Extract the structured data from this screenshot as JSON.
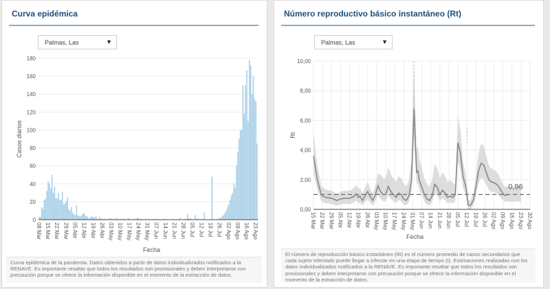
{
  "left_panel": {
    "title": "Curva epidémica",
    "dropdown": {
      "selected": "Palmas, Las",
      "arrow_icon": "▼"
    },
    "caption": "Curva epidémica de la pandemia. Datos obtenidos a partir de datos individualizados notificados a la RENAVE. Es importante resaltar que todos los resultados son provisionales y deben interpretarse con precaución porque se ofrece la información disponible en el momento de la extracción de datos."
  },
  "right_panel": {
    "title": "Número reproductivo básico instantáneo (Rt)",
    "dropdown": {
      "selected": "Palmas, Las",
      "arrow_icon": "▼"
    },
    "caption": "El número de reproducción básico instantáneo (Rt) es el número promedio de casos secundarios que cada sujeto infectado puede llegar a infectar en una etapa de tiempo (t). Estimaciones realizadas con los datos individualizados notificados a la RENAVE. Es importante resaltar que todos los resultados son provisionales y deben interpretarse con precaución porque se ofrece la información disponible en el momento de la extracción de datos."
  },
  "chart_data": [
    {
      "type": "bar",
      "title": "Curva epidémica",
      "xlabel": "Fecha",
      "ylabel": "Casos diarios",
      "ylim": [
        0,
        180
      ],
      "yticks": [
        0,
        20,
        40,
        60,
        80,
        100,
        120,
        140,
        160,
        180
      ],
      "grid": true,
      "color": "#a6cde6",
      "start_date": "08 Mar",
      "xtick_labels": [
        "08 Mar",
        "15 Mar",
        "22 Mar",
        "29 Mar",
        "05 Abr",
        "12 Abr",
        "19 Abr",
        "26 Abr",
        "03 May",
        "10 May",
        "17 May",
        "24 May",
        "31 May",
        "07 Jun",
        "14 Jun",
        "21 Jun",
        "28 Jun",
        "05 Jul",
        "12 Jul",
        "19 Jul",
        "26 Jul",
        "02 Ago",
        "09 Ago",
        "16 Ago",
        "23 Ago"
      ],
      "values": [
        3,
        3,
        14,
        12,
        22,
        23,
        32,
        43,
        40,
        35,
        50,
        30,
        37,
        24,
        24,
        30,
        22,
        22,
        31,
        17,
        18,
        20,
        25,
        12,
        10,
        14,
        8,
        6,
        5,
        16,
        5,
        4,
        4,
        5,
        7,
        7,
        4,
        4,
        2,
        1,
        3,
        4,
        3,
        2,
        4,
        1,
        1,
        3,
        1,
        0,
        1,
        1,
        0,
        0,
        1,
        2,
        1,
        0,
        1,
        0,
        2,
        1,
        0,
        1,
        0,
        1,
        1,
        0,
        0,
        2,
        1,
        0,
        0,
        0,
        1,
        0,
        2,
        2,
        0,
        1,
        0,
        0,
        0,
        1,
        0,
        0,
        0,
        0,
        0,
        0,
        0,
        1,
        0,
        0,
        0,
        0,
        0,
        1,
        0,
        0,
        0,
        0,
        0,
        0,
        0,
        0,
        0,
        0,
        0,
        2,
        0,
        0,
        0,
        1,
        0,
        6,
        1,
        2,
        0,
        0,
        0,
        5,
        0,
        2,
        0,
        0,
        1,
        0,
        8,
        0,
        0,
        0,
        0,
        0,
        48,
        0,
        0,
        0,
        0,
        1,
        2,
        2,
        4,
        5,
        8,
        10,
        14,
        17,
        22,
        27,
        30,
        40,
        36,
        60,
        75,
        90,
        100,
        100,
        150,
        118,
        150,
        167,
        110,
        178,
        172,
        140,
        160,
        135,
        132,
        85
      ],
      "last_label": "23 Ago"
    },
    {
      "type": "line",
      "title": "Número reproductivo básico instantáneo (Rt)",
      "xlabel": "Fecha",
      "ylabel": "Rt",
      "ylim": [
        0,
        10
      ],
      "yticks": [
        "0,00",
        "2,00",
        "4,00",
        "6,00",
        "8,00",
        "10,00"
      ],
      "ytick_values": [
        0,
        2,
        4,
        6,
        8,
        10
      ],
      "grid": true,
      "xtick_labels": [
        "15 Mar",
        "22 Mar",
        "29 Mar",
        "05 Abr",
        "12 Abr",
        "19 Abr",
        "26 Abr",
        "03 May",
        "10 May",
        "17 May",
        "24 May",
        "31 May",
        "07 Jun",
        "14 Jun",
        "21 Jun",
        "28 Jun",
        "05 Jul",
        "12 Jul",
        "19 Jul",
        "26 Jul",
        "02 Ago",
        "09 Ago",
        "16 Ago",
        "23 Ago",
        "30 Ago"
      ],
      "reference_line": 1.0,
      "annotation": "0,96",
      "series": [
        {
          "name": "Rt",
          "day_offset_from_15_Mar": [
            0,
            3,
            6,
            7,
            10,
            14,
            18,
            21,
            24,
            28,
            31,
            33,
            35,
            36,
            38,
            40,
            42,
            44,
            46,
            48,
            50,
            52,
            54,
            56,
            58,
            60,
            62,
            64,
            66,
            68,
            70,
            72,
            74,
            76,
            78,
            79,
            80,
            81,
            82,
            84,
            86,
            88,
            90,
            92,
            94,
            96,
            98,
            100,
            102,
            104,
            106,
            108,
            110,
            112,
            114,
            116,
            118,
            119,
            120,
            121,
            122,
            124,
            126,
            128,
            130,
            132,
            134,
            136,
            138,
            140,
            142,
            144,
            146,
            148,
            150,
            152,
            154,
            156,
            158,
            160,
            161
          ],
          "values": [
            3.6,
            2.0,
            1.0,
            0.9,
            0.8,
            0.75,
            0.6,
            0.7,
            0.75,
            0.75,
            0.85,
            1.05,
            0.8,
            0.9,
            0.6,
            0.9,
            1.2,
            0.85,
            0.6,
            1.0,
            1.6,
            1.2,
            1.0,
            1.0,
            1.55,
            1.2,
            1.0,
            0.8,
            1.1,
            1.0,
            0.7,
            0.6,
            0.9,
            1.9,
            6.8,
            4.5,
            2.5,
            2.6,
            2.0,
            1.5,
            1.0,
            0.7,
            0.6,
            0.9,
            1.7,
            1.5,
            1.0,
            1.3,
            1.1,
            0.8,
            0.9,
            0.8,
            1.0,
            4.5,
            3.8,
            2.2,
            1.6,
            1.0,
            0.3,
            0.25,
            0.3,
            0.6,
            1.5,
            2.6,
            3.1,
            3.0,
            2.5,
            2.0,
            1.85,
            1.8,
            1.7,
            1.5,
            1.2,
            0.96,
            0.96,
            0.96,
            0.96,
            0.96,
            0.96,
            0.96,
            0.96
          ]
        },
        {
          "name": "CI lower",
          "values_note": "band around Rt"
        },
        {
          "name": "CI upper",
          "values_note": "band around Rt"
        }
      ]
    }
  ]
}
